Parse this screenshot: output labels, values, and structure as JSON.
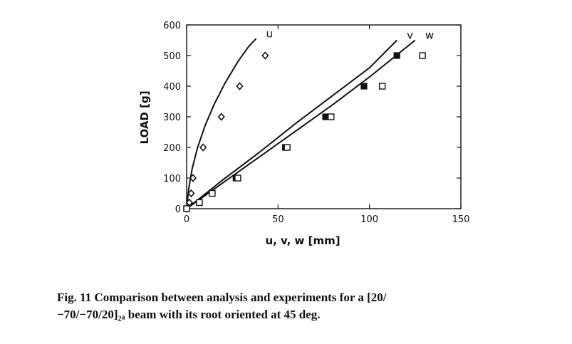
{
  "chart_data": {
    "type": "line",
    "xlabel": "u, v, w [mm]",
    "ylabel": "LOAD [g]",
    "xlim": [
      0,
      150
    ],
    "ylim": [
      0,
      600
    ],
    "xticks": [
      0,
      50,
      100,
      150
    ],
    "yticks": [
      0,
      100,
      200,
      300,
      400,
      500,
      600
    ],
    "grid": false,
    "series": [
      {
        "name": "u",
        "kind": "analysis",
        "x": [
          0,
          1,
          3,
          6,
          10,
          15,
          21,
          28,
          34,
          38
        ],
        "y": [
          0,
          60,
          130,
          200,
          270,
          340,
          410,
          480,
          530,
          555
        ]
      },
      {
        "name": "v",
        "kind": "analysis",
        "x": [
          0,
          20,
          40,
          60,
          80,
          100,
          115
        ],
        "y": [
          0,
          95,
          185,
          280,
          370,
          460,
          550
        ]
      },
      {
        "name": "w",
        "kind": "analysis",
        "x": [
          0,
          20,
          40,
          60,
          80,
          100,
          125
        ],
        "y": [
          0,
          85,
          170,
          255,
          340,
          430,
          550
        ]
      },
      {
        "name": "u",
        "kind": "experiment",
        "marker": "diamond",
        "x": [
          0,
          1.5,
          2.5,
          3.5,
          9,
          19,
          29,
          43
        ],
        "y": [
          0,
          20,
          50,
          100,
          200,
          300,
          400,
          500
        ]
      },
      {
        "name": "v",
        "kind": "experiment",
        "marker": "filled-square",
        "x": [
          0,
          27,
          54,
          76,
          97,
          115
        ],
        "y": [
          0,
          100,
          200,
          300,
          400,
          500
        ]
      },
      {
        "name": "w",
        "kind": "experiment",
        "marker": "open-square",
        "x": [
          0,
          7,
          14,
          28,
          55,
          79,
          107,
          129
        ],
        "y": [
          0,
          20,
          50,
          100,
          200,
          300,
          400,
          500
        ]
      }
    ]
  },
  "caption": {
    "line1": "Fig. 11   Comparison between analysis and experiments for a [20/",
    "line2": "−70/−70/20]₂ₐ beam with its root oriented at 45 deg."
  }
}
